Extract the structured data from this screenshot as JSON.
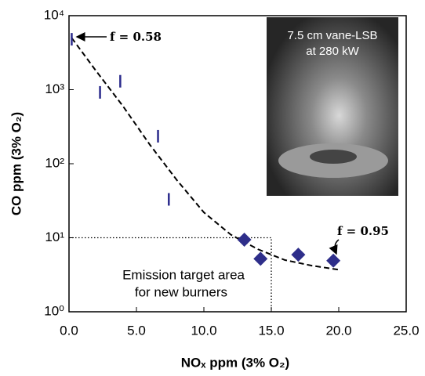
{
  "chart_data": {
    "type": "scatter",
    "x_label": "NOₓ ppm (3% O₂)",
    "y_label": "CO ppm (3% O₂)",
    "log_y": true,
    "xlim": [
      0,
      25
    ],
    "xticks": [
      {
        "value": 0,
        "label": "0.0"
      },
      {
        "value": 5,
        "label": "5.0"
      },
      {
        "value": 10,
        "label": "10.0"
      },
      {
        "value": 15,
        "label": "15.0"
      },
      {
        "value": 20,
        "label": "20.0"
      },
      {
        "value": 25,
        "label": "25.0"
      }
    ],
    "ylim": [
      1,
      10000
    ],
    "yticks": [
      {
        "value": 1,
        "label": "10⁰"
      },
      {
        "value": 10,
        "label": "10¹"
      },
      {
        "value": 100,
        "label": "10²"
      },
      {
        "value": 1000,
        "label": "10³"
      },
      {
        "value": 10000,
        "label": "10⁴"
      }
    ],
    "series": [
      {
        "marker": "vline",
        "color": "#2b2b8c",
        "x": [
          0.2,
          2.3,
          3.8,
          6.6,
          7.4
        ],
        "values": [
          4800,
          920,
          1300,
          235,
          33
        ]
      },
      {
        "marker": "diamond",
        "color": "#2e2e8a",
        "x": [
          13.0,
          14.2,
          17.0,
          19.6
        ],
        "values": [
          9.4,
          5.2,
          5.9,
          4.9
        ]
      }
    ],
    "fit_curve": {
      "style": "dashed",
      "x": [
        0.2,
        2,
        4,
        6,
        8,
        10,
        12,
        14,
        16,
        18,
        20
      ],
      "values": [
        5000,
        1800,
        600,
        180,
        60,
        22,
        11,
        7,
        5,
        4.2,
        3.7
      ]
    },
    "target_box": {
      "xlim": [
        0,
        15
      ],
      "ylim": [
        1,
        10
      ]
    },
    "annotations": [
      "f = 0.58",
      "f = 0.95"
    ],
    "target_text": [
      "Emission target area",
      "for new burners"
    ],
    "photo_caption": [
      "7.5 cm vane-LSB",
      "at 280 kW"
    ]
  }
}
